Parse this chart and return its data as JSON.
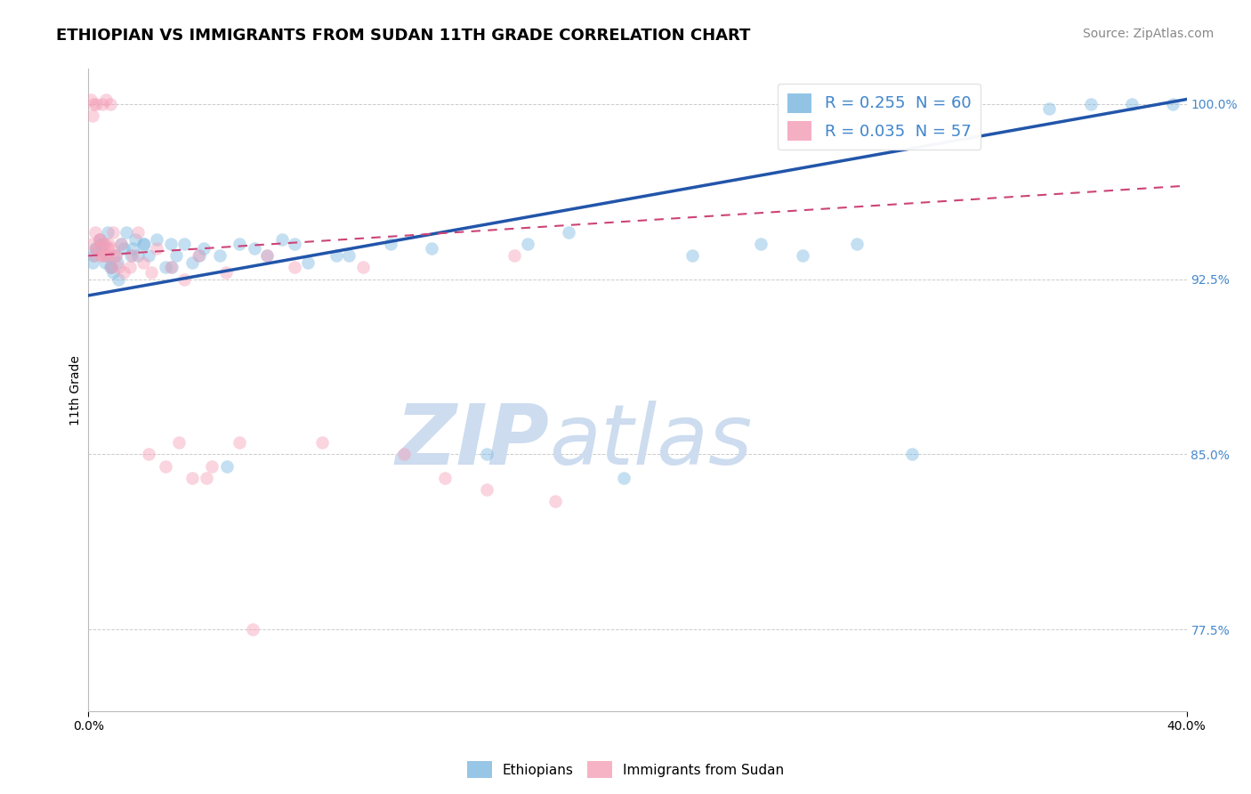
{
  "title": "ETHIOPIAN VS IMMIGRANTS FROM SUDAN 11TH GRADE CORRELATION CHART",
  "source": "Source: ZipAtlas.com",
  "ylabel": "11th Grade",
  "xlim": [
    0.0,
    40.0
  ],
  "ylim": [
    74.0,
    101.5
  ],
  "yticks": [
    77.5,
    85.0,
    92.5,
    100.0
  ],
  "ytick_labels": [
    "77.5%",
    "85.0%",
    "92.5%",
    "100.0%"
  ],
  "legend_entries": [
    {
      "label": "R = 0.255  N = 60",
      "color": "#aec6e8"
    },
    {
      "label": "R = 0.035  N = 57",
      "color": "#f4b8c8"
    }
  ],
  "bottom_legend": [
    {
      "label": "Ethiopians",
      "color": "#aec6e8"
    },
    {
      "label": "Immigrants from Sudan",
      "color": "#f4b8c8"
    }
  ],
  "blue_scatter_x": [
    0.2,
    0.3,
    0.4,
    0.5,
    0.6,
    0.7,
    0.8,
    0.9,
    1.0,
    1.1,
    1.2,
    1.3,
    1.4,
    1.6,
    1.7,
    1.8,
    2.0,
    2.2,
    2.5,
    2.8,
    3.0,
    3.2,
    3.5,
    3.8,
    4.2,
    4.8,
    5.5,
    6.5,
    7.5,
    8.0,
    9.5,
    11.0,
    12.5,
    14.5,
    16.0,
    17.5,
    19.5,
    22.0,
    24.5,
    26.0,
    28.0,
    30.0,
    35.0,
    36.5,
    38.0,
    39.5,
    0.15,
    0.25,
    0.45,
    0.65,
    0.85,
    1.05,
    1.55,
    2.05,
    3.05,
    4.05,
    5.05,
    6.05,
    7.05,
    9.05
  ],
  "blue_scatter_y": [
    93.5,
    93.8,
    94.2,
    94.0,
    93.2,
    94.5,
    93.0,
    92.8,
    93.5,
    92.5,
    94.0,
    93.8,
    94.5,
    93.8,
    94.2,
    93.5,
    94.0,
    93.5,
    94.2,
    93.0,
    94.0,
    93.5,
    94.0,
    93.2,
    93.8,
    93.5,
    94.0,
    93.5,
    94.0,
    93.2,
    93.5,
    94.0,
    93.8,
    85.0,
    94.0,
    94.5,
    84.0,
    93.5,
    94.0,
    93.5,
    94.0,
    85.0,
    99.8,
    100.0,
    100.0,
    100.0,
    93.2,
    93.8,
    94.0,
    93.5,
    93.0,
    93.2,
    93.5,
    94.0,
    93.0,
    93.5,
    84.5,
    93.8,
    94.2,
    93.5
  ],
  "pink_scatter_x": [
    0.1,
    0.15,
    0.2,
    0.25,
    0.3,
    0.35,
    0.4,
    0.45,
    0.5,
    0.55,
    0.6,
    0.65,
    0.7,
    0.75,
    0.8,
    0.85,
    0.9,
    1.0,
    1.2,
    1.5,
    1.8,
    2.0,
    2.5,
    3.0,
    3.5,
    4.0,
    5.0,
    0.12,
    0.22,
    0.32,
    0.42,
    0.52,
    0.62,
    0.72,
    0.82,
    0.92,
    1.1,
    1.3,
    1.6,
    2.2,
    2.8,
    3.8,
    4.5,
    5.5,
    6.5,
    7.5,
    8.5,
    10.0,
    11.5,
    13.0,
    14.5,
    15.5,
    17.0,
    2.3,
    3.3,
    4.3,
    6.0
  ],
  "pink_scatter_y": [
    100.2,
    99.5,
    100.0,
    94.5,
    100.0,
    93.8,
    94.2,
    93.5,
    100.0,
    94.0,
    93.5,
    100.2,
    93.8,
    94.0,
    100.0,
    93.0,
    94.5,
    93.5,
    94.0,
    93.0,
    94.5,
    93.2,
    93.8,
    93.0,
    92.5,
    93.5,
    92.8,
    94.0,
    93.5,
    93.8,
    94.2,
    93.5,
    94.0,
    93.5,
    93.8,
    93.5,
    93.0,
    92.8,
    93.5,
    85.0,
    84.5,
    84.0,
    84.5,
    85.5,
    93.5,
    93.0,
    85.5,
    93.0,
    85.0,
    84.0,
    83.5,
    93.5,
    83.0,
    92.8,
    85.5,
    84.0,
    77.5
  ],
  "blue_line_x": [
    0.0,
    40.0
  ],
  "blue_line_y": [
    91.8,
    100.2
  ],
  "pink_line_x": [
    0.0,
    40.0
  ],
  "pink_line_y": [
    93.5,
    96.5
  ],
  "scatter_size": 110,
  "scatter_alpha": 0.45,
  "line_width": 2.5,
  "watermark_zip": "ZIP",
  "watermark_atlas": "atlas",
  "watermark_color": "#cddcef",
  "watermark_fontsize": 68,
  "title_fontsize": 13,
  "axis_label_fontsize": 10,
  "tick_fontsize": 10,
  "source_fontsize": 10,
  "blue_color": "#7db8e0",
  "pink_color": "#f4a0b8",
  "blue_line_color": "#2255aa",
  "pink_line_color": "#cc4477",
  "tick_color": "#4488cc",
  "grid_color": "#cccccc",
  "background_color": "#ffffff"
}
